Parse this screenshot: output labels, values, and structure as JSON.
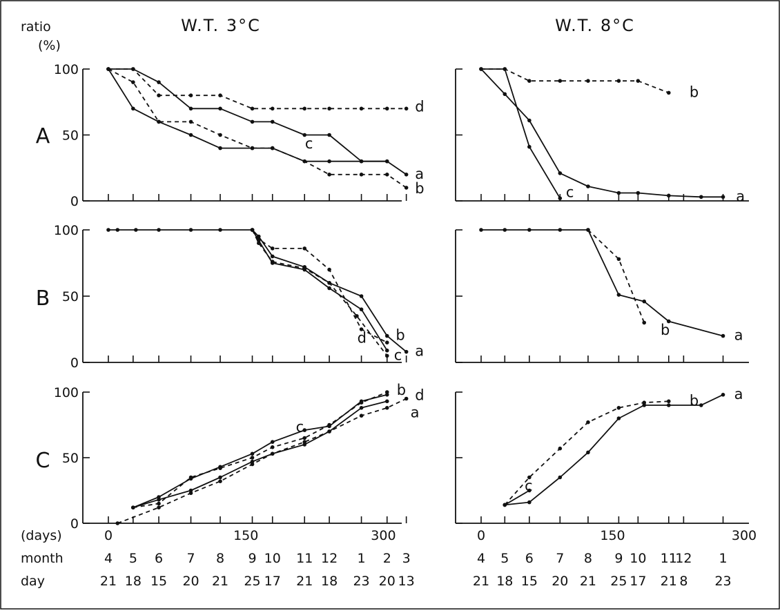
{
  "figure": {
    "ylabel_top": "ratio",
    "ylabel_unit": "(%)",
    "days_label": "(days)",
    "month_label": "month",
    "day_label": "day"
  },
  "colors": {
    "ink": "#111111",
    "background": "#ffffff"
  },
  "columns": [
    {
      "title": "W.T. 3°C",
      "xlim": [
        0,
        320
      ],
      "x_ticks": [
        0,
        150,
        300
      ],
      "date_ticks": [
        {
          "day": 0,
          "month": "4",
          "date": "21"
        },
        {
          "day": 27,
          "month": "5",
          "date": "18"
        },
        {
          "day": 55,
          "month": "6",
          "date": "15"
        },
        {
          "day": 90,
          "month": "7",
          "date": "20"
        },
        {
          "day": 122,
          "month": "8",
          "date": "21"
        },
        {
          "day": 157,
          "month": "9",
          "date": "25"
        },
        {
          "day": 179,
          "month": "10",
          "date": "17"
        },
        {
          "day": 214,
          "month": "11",
          "date": "21"
        },
        {
          "day": 241,
          "month": "12",
          "date": "18"
        },
        {
          "day": 276,
          "month": "1",
          "date": "23"
        },
        {
          "day": 304,
          "month": "2",
          "date": "20"
        },
        {
          "day": 325,
          "month": "3",
          "date": "13"
        }
      ]
    },
    {
      "title": "W.T. 8°C",
      "xlim": [
        0,
        300
      ],
      "x_ticks": [
        0,
        150,
        300
      ],
      "date_ticks": [
        {
          "day": 0,
          "month": "4",
          "date": "21"
        },
        {
          "day": 27,
          "month": "5",
          "date": "18"
        },
        {
          "day": 55,
          "month": "6",
          "date": "15"
        },
        {
          "day": 90,
          "month": "7",
          "date": "20"
        },
        {
          "day": 122,
          "month": "8",
          "date": "21"
        },
        {
          "day": 157,
          "month": "9",
          "date": "25"
        },
        {
          "day": 179,
          "month": "10",
          "date": "17"
        },
        {
          "day": 214,
          "month": "11",
          "date": "21"
        },
        {
          "day": 231,
          "month": "12",
          "date": "8"
        },
        {
          "day": 276,
          "month": "1",
          "date": "23"
        }
      ]
    }
  ],
  "chart_data": [
    {
      "type": "line",
      "row": "A",
      "column": 0,
      "ylim": [
        0,
        100
      ],
      "y_ticks": [
        0,
        50,
        100
      ],
      "series": [
        {
          "name": "a",
          "style": "solid",
          "x": [
            0,
            27,
            55,
            90,
            122,
            157,
            179,
            214,
            241,
            276,
            304,
            325
          ],
          "y": [
            100,
            70,
            60,
            50,
            40,
            40,
            40,
            30,
            30,
            30,
            30,
            20
          ]
        },
        {
          "name": "b",
          "style": "dashed",
          "x": [
            0,
            27,
            55,
            90,
            122,
            157,
            179,
            214,
            241,
            276,
            304,
            325
          ],
          "y": [
            100,
            90,
            60,
            60,
            50,
            40,
            40,
            30,
            20,
            20,
            20,
            10
          ]
        },
        {
          "name": "c",
          "style": "solid",
          "x": [
            0,
            27,
            55,
            90,
            122,
            157,
            179,
            214,
            241,
            276,
            304
          ],
          "y": [
            100,
            100,
            90,
            70,
            70,
            60,
            60,
            50,
            50,
            30,
            30
          ]
        },
        {
          "name": "d",
          "style": "dashed",
          "x": [
            0,
            27,
            55,
            90,
            122,
            157,
            179,
            214,
            241,
            276,
            304,
            325
          ],
          "y": [
            100,
            100,
            80,
            80,
            80,
            70,
            70,
            70,
            70,
            70,
            70,
            70
          ]
        }
      ]
    },
    {
      "type": "line",
      "row": "A",
      "column": 1,
      "ylim": [
        0,
        100
      ],
      "y_ticks": [
        0,
        50,
        100
      ],
      "series": [
        {
          "name": "a",
          "style": "solid",
          "x": [
            0,
            27,
            55,
            90,
            122,
            157,
            179,
            214,
            251,
            276
          ],
          "y": [
            100,
            81,
            61,
            21,
            11,
            6,
            6,
            4,
            3,
            3
          ]
        },
        {
          "name": "b",
          "style": "dashed",
          "x": [
            0,
            27,
            55,
            90,
            122,
            157,
            179,
            214
          ],
          "y": [
            100,
            100,
            91,
            91,
            91,
            91,
            91,
            82
          ]
        },
        {
          "name": "c",
          "style": "solid",
          "x": [
            0,
            27,
            55,
            90
          ],
          "y": [
            100,
            100,
            41,
            2
          ]
        }
      ]
    },
    {
      "type": "line",
      "row": "B",
      "column": 0,
      "ylim": [
        0,
        100
      ],
      "y_ticks": [
        0,
        50,
        100
      ],
      "series": [
        {
          "name": "a",
          "style": "solid",
          "x": [
            0,
            10,
            30,
            55,
            90,
            122,
            157,
            164,
            179,
            214,
            241,
            276,
            304,
            325
          ],
          "y": [
            100,
            100,
            100,
            100,
            100,
            100,
            100,
            95,
            80,
            72,
            60,
            50,
            20,
            8
          ]
        },
        {
          "name": "b",
          "style": "dashed",
          "x": [
            157,
            164,
            179,
            214,
            241,
            276,
            304
          ],
          "y": [
            100,
            93,
            86,
            86,
            70,
            25,
            15
          ]
        },
        {
          "name": "c",
          "style": "solid",
          "x": [
            157,
            164,
            179,
            214,
            241,
            276,
            304
          ],
          "y": [
            100,
            92,
            75,
            70,
            56,
            40,
            9
          ]
        },
        {
          "name": "d",
          "style": "dashed",
          "x": [
            157,
            164,
            179,
            214,
            241,
            271,
            304
          ],
          "y": [
            100,
            90,
            76,
            71,
            60,
            35,
            5
          ]
        }
      ]
    },
    {
      "type": "line",
      "row": "B",
      "column": 1,
      "ylim": [
        0,
        100
      ],
      "y_ticks": [
        0,
        50,
        100
      ],
      "series": [
        {
          "name": "a",
          "style": "solid",
          "x": [
            0,
            27,
            55,
            90,
            122,
            157,
            186,
            214,
            276
          ],
          "y": [
            100,
            100,
            100,
            100,
            100,
            51,
            46,
            31,
            20
          ]
        },
        {
          "name": "b",
          "style": "dashed",
          "x": [
            122,
            157,
            186
          ],
          "y": [
            100,
            78,
            30
          ]
        }
      ]
    },
    {
      "type": "line",
      "row": "C",
      "column": 0,
      "ylim": [
        0,
        100
      ],
      "y_ticks": [
        0,
        50,
        100
      ],
      "series": [
        {
          "name": "a",
          "style": "solid",
          "x": [
            27,
            55,
            90,
            122,
            157,
            179,
            214,
            241,
            276,
            304
          ],
          "y": [
            12,
            18,
            25,
            35,
            47,
            53,
            60,
            70,
            88,
            93
          ]
        },
        {
          "name": "b",
          "style": "dashed",
          "x": [
            27,
            55,
            90,
            122,
            157,
            179,
            214,
            241,
            276,
            304
          ],
          "y": [
            12,
            15,
            35,
            42,
            50,
            58,
            65,
            75,
            92,
            100
          ]
        },
        {
          "name": "c",
          "style": "solid",
          "x": [
            27,
            55,
            90,
            122,
            157,
            179,
            214,
            241,
            276,
            304
          ],
          "y": [
            12,
            20,
            34,
            43,
            53,
            62,
            71,
            74,
            93,
            98
          ]
        },
        {
          "name": "d",
          "style": "dashed",
          "x": [
            10,
            55,
            90,
            122,
            157,
            179,
            214,
            241,
            276,
            304,
            325
          ],
          "y": [
            0,
            12,
            23,
            32,
            45,
            53,
            62,
            70,
            82,
            88,
            95
          ]
        }
      ]
    },
    {
      "type": "line",
      "row": "C",
      "column": 1,
      "ylim": [
        0,
        100
      ],
      "y_ticks": [
        0,
        50,
        100
      ],
      "series": [
        {
          "name": "a",
          "style": "solid",
          "x": [
            27,
            55,
            90,
            122,
            157,
            186,
            214,
            251,
            276
          ],
          "y": [
            14,
            16,
            35,
            54,
            80,
            90,
            90,
            90,
            98
          ]
        },
        {
          "name": "b",
          "style": "dashed",
          "x": [
            27,
            55,
            90,
            122,
            157,
            186,
            214
          ],
          "y": [
            14,
            35,
            57,
            77,
            88,
            92,
            93
          ]
        },
        {
          "name": "c",
          "style": "solid",
          "x": [
            27,
            55
          ],
          "y": [
            14,
            25
          ]
        }
      ]
    }
  ]
}
